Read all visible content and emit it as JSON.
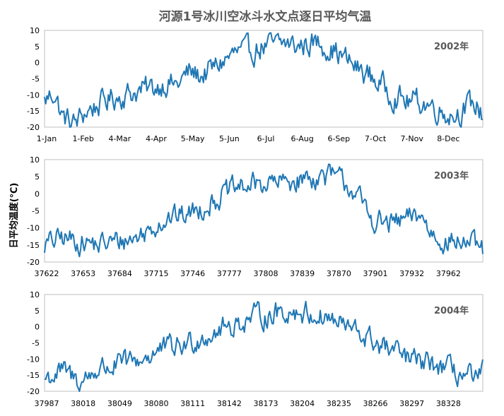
{
  "chart_data": {
    "type": "line",
    "title": "河源1号冰川空冰斗水文点逐日平均气温",
    "ylabel": "日平均温度(℃)",
    "panels": [
      {
        "year_label": "2002年",
        "ylim": [
          -20,
          10
        ],
        "yticks": [
          "10",
          "5",
          "0",
          "-5",
          "-10",
          "-15",
          "-20"
        ],
        "xticks": [
          "1-Jan",
          "1-Feb",
          "4-Mar",
          "4-Apr",
          "5-May",
          "5-Jun",
          "6-Jul",
          "6-Aug",
          "6-Sep",
          "7-Oct",
          "7-Nov",
          "8-Dec"
        ],
        "anchors": [
          [
            0,
            -12
          ],
          [
            8,
            -9
          ],
          [
            15,
            -17
          ],
          [
            25,
            -19
          ],
          [
            35,
            -15
          ],
          [
            45,
            -13
          ],
          [
            55,
            -11
          ],
          [
            65,
            -10
          ],
          [
            75,
            -9
          ],
          [
            90,
            -8
          ],
          [
            100,
            -6
          ],
          [
            110,
            -7
          ],
          [
            120,
            -3
          ],
          [
            130,
            -4
          ],
          [
            140,
            -2
          ],
          [
            150,
            1
          ],
          [
            160,
            3
          ],
          [
            170,
            3
          ],
          [
            180,
            5
          ],
          [
            190,
            5
          ],
          [
            200,
            6
          ],
          [
            210,
            5
          ],
          [
            220,
            6
          ],
          [
            230,
            6
          ],
          [
            240,
            4
          ],
          [
            250,
            1
          ],
          [
            260,
            -2
          ],
          [
            270,
            -4
          ],
          [
            280,
            -7
          ],
          [
            290,
            -10
          ],
          [
            300,
            -12
          ],
          [
            310,
            -12
          ],
          [
            320,
            -13
          ],
          [
            330,
            -15
          ],
          [
            340,
            -16
          ],
          [
            350,
            -14
          ],
          [
            357,
            -13
          ],
          [
            364,
            -16
          ]
        ],
        "noise": 3.2
      },
      {
        "year_label": "2003年",
        "ylim": [
          -20,
          10
        ],
        "yticks": [
          "10",
          "5",
          "0",
          "-5",
          "-10",
          "-15",
          "-20"
        ],
        "xticks": [
          "37622",
          "37653",
          "37684",
          "37715",
          "37746",
          "37777",
          "37808",
          "37839",
          "37870",
          "37901",
          "37932",
          "37962"
        ],
        "anchors": [
          [
            0,
            -15
          ],
          [
            15,
            -13
          ],
          [
            30,
            -14
          ],
          [
            45,
            -15
          ],
          [
            60,
            -14
          ],
          [
            75,
            -13
          ],
          [
            85,
            -11
          ],
          [
            95,
            -8
          ],
          [
            105,
            -7
          ],
          [
            120,
            -6
          ],
          [
            135,
            -3
          ],
          [
            150,
            0
          ],
          [
            165,
            2
          ],
          [
            180,
            3
          ],
          [
            195,
            3
          ],
          [
            210,
            4
          ],
          [
            225,
            5
          ],
          [
            240,
            5
          ],
          [
            255,
            2
          ],
          [
            262,
            -2
          ],
          [
            270,
            -7
          ],
          [
            285,
            -9
          ],
          [
            300,
            -8
          ],
          [
            312,
            -6
          ],
          [
            320,
            -11
          ],
          [
            335,
            -14
          ],
          [
            350,
            -14
          ],
          [
            364,
            -17
          ]
        ],
        "noise": 2.8
      },
      {
        "year_label": "2004年",
        "ylim": [
          -20,
          10
        ],
        "yticks": [
          "10",
          "5",
          "0",
          "-5",
          "-10",
          "-15",
          "-20"
        ],
        "xticks": [
          "37987",
          "38018",
          "38049",
          "38080",
          "38111",
          "38142",
          "38173",
          "38204",
          "38235",
          "38266",
          "38297",
          "38328"
        ],
        "anchors": [
          [
            0,
            -16
          ],
          [
            15,
            -14
          ],
          [
            30,
            -17
          ],
          [
            45,
            -13
          ],
          [
            60,
            -12
          ],
          [
            75,
            -11
          ],
          [
            85,
            -9
          ],
          [
            100,
            -7
          ],
          [
            115,
            -6
          ],
          [
            130,
            -3
          ],
          [
            145,
            -1
          ],
          [
            160,
            1
          ],
          [
            175,
            3
          ],
          [
            190,
            4
          ],
          [
            205,
            5
          ],
          [
            220,
            4
          ],
          [
            235,
            3
          ],
          [
            250,
            0
          ],
          [
            265,
            -3
          ],
          [
            280,
            -6
          ],
          [
            295,
            -9
          ],
          [
            310,
            -11
          ],
          [
            325,
            -12
          ],
          [
            340,
            -14
          ],
          [
            355,
            -16
          ],
          [
            360,
            -18
          ],
          [
            364,
            -13
          ]
        ],
        "noise": 3.0
      }
    ]
  }
}
